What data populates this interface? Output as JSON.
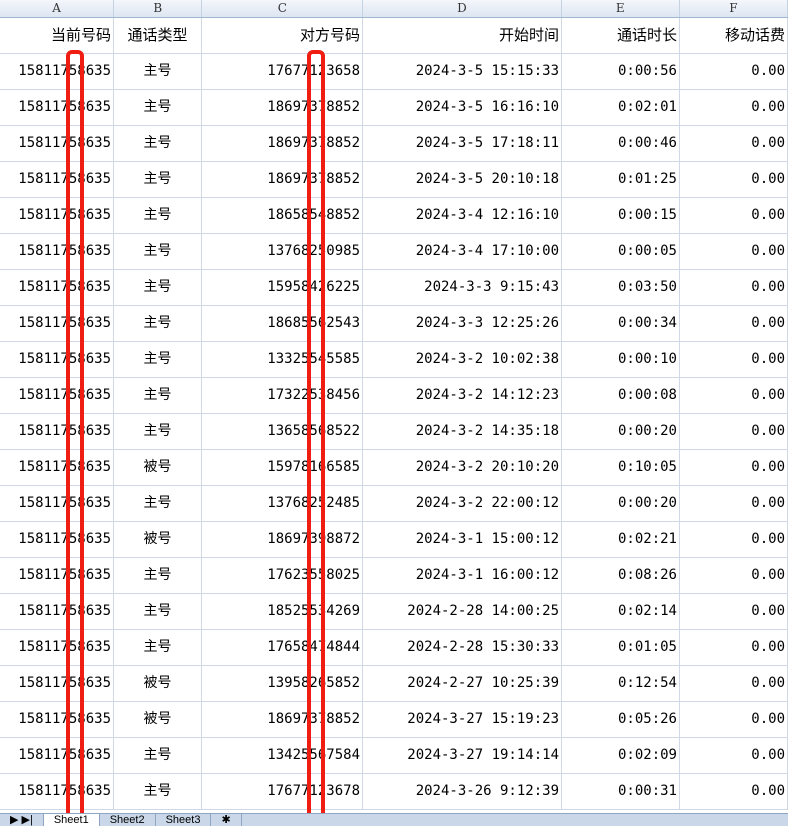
{
  "columns": [
    "A",
    "B",
    "C",
    "D",
    "E",
    "F"
  ],
  "headers": [
    "当前号码",
    "通话类型",
    "对方号码",
    "开始时间",
    "通话时长",
    "移动话费"
  ],
  "rows": [
    [
      "15811758635",
      "主号",
      "17677123658",
      "2024-3-5 15:15:33",
      "0:00:56",
      "0.00"
    ],
    [
      "15811758635",
      "主号",
      "18697378852",
      "2024-3-5 16:16:10",
      "0:02:01",
      "0.00"
    ],
    [
      "15811758635",
      "主号",
      "18697378852",
      "2024-3-5 17:18:11",
      "0:00:46",
      "0.00"
    ],
    [
      "15811758635",
      "主号",
      "18697378852",
      "2024-3-5 20:10:18",
      "0:01:25",
      "0.00"
    ],
    [
      "15811758635",
      "主号",
      "18658548852",
      "2024-3-4 12:16:10",
      "0:00:15",
      "0.00"
    ],
    [
      "15811758635",
      "主号",
      "13768250985",
      "2024-3-4 17:10:00",
      "0:00:05",
      "0.00"
    ],
    [
      "15811758635",
      "主号",
      "15958426225",
      "2024-3-3 9:15:43",
      "0:03:50",
      "0.00"
    ],
    [
      "15811758635",
      "主号",
      "18685562543",
      "2024-3-3 12:25:26",
      "0:00:34",
      "0.00"
    ],
    [
      "15811758635",
      "主号",
      "13325545585",
      "2024-3-2 10:02:38",
      "0:00:10",
      "0.00"
    ],
    [
      "15811758635",
      "主号",
      "17322538456",
      "2024-3-2 14:12:23",
      "0:00:08",
      "0.00"
    ],
    [
      "15811758635",
      "主号",
      "13658568522",
      "2024-3-2 14:35:18",
      "0:00:20",
      "0.00"
    ],
    [
      "15811758635",
      "被号",
      "15978166585",
      "2024-3-2 20:10:20",
      "0:10:05",
      "0.00"
    ],
    [
      "15811758635",
      "主号",
      "13768252485",
      "2024-3-2 22:00:12",
      "0:00:20",
      "0.00"
    ],
    [
      "15811758635",
      "被号",
      "18697398872",
      "2024-3-1 15:00:12",
      "0:02:21",
      "0.00"
    ],
    [
      "15811758635",
      "主号",
      "17623558025",
      "2024-3-1 16:00:12",
      "0:08:26",
      "0.00"
    ],
    [
      "15811758635",
      "主号",
      "18525534269",
      "2024-2-28 14:00:25",
      "0:02:14",
      "0.00"
    ],
    [
      "15811758635",
      "主号",
      "17658474844",
      "2024-2-28 15:30:33",
      "0:01:05",
      "0.00"
    ],
    [
      "15811758635",
      "被号",
      "13958265852",
      "2024-2-27 10:25:39",
      "0:12:54",
      "0.00"
    ],
    [
      "15811758635",
      "被号",
      "18697378852",
      "2024-3-27 15:19:23",
      "0:05:26",
      "0.00"
    ],
    [
      "15811758635",
      "主号",
      "13425567584",
      "2024-3-27 19:14:14",
      "0:02:09",
      "0.00"
    ],
    [
      "15811758635",
      "主号",
      "17677123678",
      "2024-3-26 9:12:39",
      "0:00:31",
      "0.00"
    ]
  ],
  "sheet_tabs": [
    "Sheet1",
    "Sheet2",
    "Sheet3"
  ],
  "highlight_color": "#f01d12"
}
